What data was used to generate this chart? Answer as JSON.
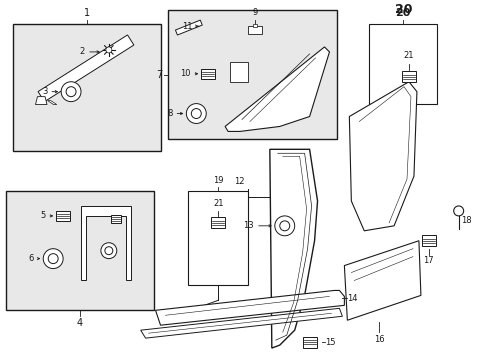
{
  "bg_color": "#ffffff",
  "line_color": "#1a1a1a",
  "fill_color": "#e8e8e8",
  "fig_width": 4.89,
  "fig_height": 3.6,
  "dpi": 100
}
